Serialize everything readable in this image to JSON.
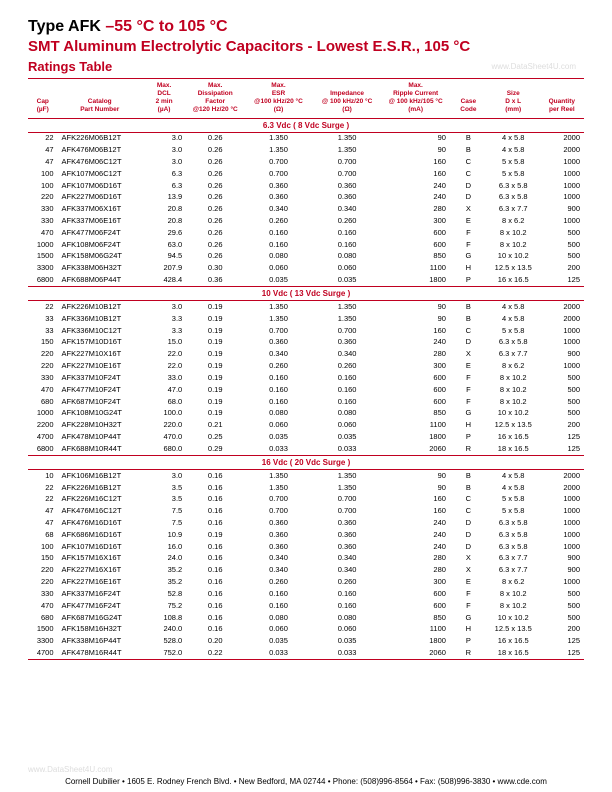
{
  "title": {
    "line1_afk": "Type AFK",
    "line1_temp": "  –55 °C to 105 °C",
    "line2": "SMT Aluminum Electrolytic Capacitors - Lowest E.S.R., 105 °C",
    "ratings": "Ratings Table",
    "watermark": "www.DataSheet4U.com"
  },
  "headers": {
    "cap": "Cap\n(µF)",
    "pn": "Catalog\nPart Number",
    "dcl": "Max.\nDCL\n2 min\n(µA)",
    "df": "Max.\nDissipation\nFactor\n@120 Hz/20 °C",
    "esr": "Max.\nESR\n@100 kHz/20 °C\n(Ω)",
    "imp": "Impedance\n@ 100 kHz/20 °C\n(Ω)",
    "rc": "Max.\nRipple Current\n@ 100 kHz/105 °C\n(mA)",
    "cc": "Case\nCode",
    "sz": "Size\nD x L\n(mm)",
    "qty": "Quantity\nper Reel"
  },
  "sections": [
    {
      "label": "6.3 Vdc ( 8 Vdc Surge )",
      "rows": [
        [
          "22",
          "AFK226M06B12T",
          "3.0",
          "0.26",
          "1.350",
          "1.350",
          "90",
          "B",
          "4 x 5.8",
          "2000"
        ],
        [
          "47",
          "AFK476M06B12T",
          "3.0",
          "0.26",
          "1.350",
          "1.350",
          "90",
          "B",
          "4 x 5.8",
          "2000"
        ],
        [
          "47",
          "AFK476M06C12T",
          "3.0",
          "0.26",
          "0.700",
          "0.700",
          "160",
          "C",
          "5 x 5.8",
          "1000"
        ],
        [
          "100",
          "AFK107M06C12T",
          "6.3",
          "0.26",
          "0.700",
          "0.700",
          "160",
          "C",
          "5 x 5.8",
          "1000"
        ],
        [
          "100",
          "AFK107M06D16T",
          "6.3",
          "0.26",
          "0.360",
          "0.360",
          "240",
          "D",
          "6.3 x 5.8",
          "1000"
        ],
        [
          "220",
          "AFK227M06D16T",
          "13.9",
          "0.26",
          "0.360",
          "0.360",
          "240",
          "D",
          "6.3 x 5.8",
          "1000"
        ],
        [
          "330",
          "AFK337M06X16T",
          "20.8",
          "0.26",
          "0.340",
          "0.340",
          "280",
          "X",
          "6.3 x 7.7",
          "900"
        ],
        [
          "330",
          "AFK337M06E16T",
          "20.8",
          "0.26",
          "0.260",
          "0.260",
          "300",
          "E",
          "8 x 6.2",
          "1000"
        ],
        [
          "470",
          "AFK477M06F24T",
          "29.6",
          "0.26",
          "0.160",
          "0.160",
          "600",
          "F",
          "8 x 10.2",
          "500"
        ],
        [
          "1000",
          "AFK108M06F24T",
          "63.0",
          "0.26",
          "0.160",
          "0.160",
          "600",
          "F",
          "8 x 10.2",
          "500"
        ],
        [
          "1500",
          "AFK158M06G24T",
          "94.5",
          "0.26",
          "0.080",
          "0.080",
          "850",
          "G",
          "10 x 10.2",
          "500"
        ],
        [
          "3300",
          "AFK338M06H32T",
          "207.9",
          "0.30",
          "0.060",
          "0.060",
          "1100",
          "H",
          "12.5 x 13.5",
          "200"
        ],
        [
          "6800",
          "AFK688M06P44T",
          "428.4",
          "0.36",
          "0.035",
          "0.035",
          "1800",
          "P",
          "16 x 16.5",
          "125"
        ]
      ]
    },
    {
      "label": "10 Vdc ( 13 Vdc Surge )",
      "rows": [
        [
          "22",
          "AFK226M10B12T",
          "3.0",
          "0.19",
          "1.350",
          "1.350",
          "90",
          "B",
          "4 x 5.8",
          "2000"
        ],
        [
          "33",
          "AFK336M10B12T",
          "3.3",
          "0.19",
          "1.350",
          "1.350",
          "90",
          "B",
          "4 x 5.8",
          "2000"
        ],
        [
          "33",
          "AFK336M10C12T",
          "3.3",
          "0.19",
          "0.700",
          "0.700",
          "160",
          "C",
          "5 x 5.8",
          "1000"
        ],
        [
          "150",
          "AFK157M10D16T",
          "15.0",
          "0.19",
          "0.360",
          "0.360",
          "240",
          "D",
          "6.3 x 5.8",
          "1000"
        ],
        [
          "220",
          "AFK227M10X16T",
          "22.0",
          "0.19",
          "0.340",
          "0.340",
          "280",
          "X",
          "6.3 x 7.7",
          "900"
        ],
        [
          "220",
          "AFK227M10E16T",
          "22.0",
          "0.19",
          "0.260",
          "0.260",
          "300",
          "E",
          "8 x 6.2",
          "1000"
        ],
        [
          "330",
          "AFK337M10F24T",
          "33.0",
          "0.19",
          "0.160",
          "0.160",
          "600",
          "F",
          "8 x 10.2",
          "500"
        ],
        [
          "470",
          "AFK477M10F24T",
          "47.0",
          "0.19",
          "0.160",
          "0.160",
          "600",
          "F",
          "8 x 10.2",
          "500"
        ],
        [
          "680",
          "AFK687M10F24T",
          "68.0",
          "0.19",
          "0.160",
          "0.160",
          "600",
          "F",
          "8 x 10.2",
          "500"
        ],
        [
          "1000",
          "AFK108M10G24T",
          "100.0",
          "0.19",
          "0.080",
          "0.080",
          "850",
          "G",
          "10 x 10.2",
          "500"
        ],
        [
          "2200",
          "AFK228M10H32T",
          "220.0",
          "0.21",
          "0.060",
          "0.060",
          "1100",
          "H",
          "12.5 x 13.5",
          "200"
        ],
        [
          "4700",
          "AFK478M10P44T",
          "470.0",
          "0.25",
          "0.035",
          "0.035",
          "1800",
          "P",
          "16 x 16.5",
          "125"
        ],
        [
          "6800",
          "AFK688M10R44T",
          "680.0",
          "0.29",
          "0.033",
          "0.033",
          "2060",
          "R",
          "18 x 16.5",
          "125"
        ]
      ]
    },
    {
      "label": "16 Vdc ( 20 Vdc Surge )",
      "rows": [
        [
          "10",
          "AFK106M16B12T",
          "3.0",
          "0.16",
          "1.350",
          "1.350",
          "90",
          "B",
          "4 x 5.8",
          "2000"
        ],
        [
          "22",
          "AFK226M16B12T",
          "3.5",
          "0.16",
          "1.350",
          "1.350",
          "90",
          "B",
          "4 x 5.8",
          "2000"
        ],
        [
          "22",
          "AFK226M16C12T",
          "3.5",
          "0.16",
          "0.700",
          "0.700",
          "160",
          "C",
          "5 x 5.8",
          "1000"
        ],
        [
          "47",
          "AFK476M16C12T",
          "7.5",
          "0.16",
          "0.700",
          "0.700",
          "160",
          "C",
          "5 x 5.8",
          "1000"
        ],
        [
          "47",
          "AFK476M16D16T",
          "7.5",
          "0.16",
          "0.360",
          "0.360",
          "240",
          "D",
          "6.3 x 5.8",
          "1000"
        ],
        [
          "68",
          "AFK686M16D16T",
          "10.9",
          "0.19",
          "0.360",
          "0.360",
          "240",
          "D",
          "6.3 x 5.8",
          "1000"
        ],
        [
          "100",
          "AFK107M16D16T",
          "16.0",
          "0.16",
          "0.360",
          "0.360",
          "240",
          "D",
          "6.3 x 5.8",
          "1000"
        ],
        [
          "150",
          "AFK157M16X16T",
          "24.0",
          "0.16",
          "0.340",
          "0.340",
          "280",
          "X",
          "6.3 x 7.7",
          "900"
        ],
        [
          "220",
          "AFK227M16X16T",
          "35.2",
          "0.16",
          "0.340",
          "0.340",
          "280",
          "X",
          "6.3 x 7.7",
          "900"
        ],
        [
          "220",
          "AFK227M16E16T",
          "35.2",
          "0.16",
          "0.260",
          "0.260",
          "300",
          "E",
          "8 x 6.2",
          "1000"
        ],
        [
          "330",
          "AFK337M16F24T",
          "52.8",
          "0.16",
          "0.160",
          "0.160",
          "600",
          "F",
          "8 x 10.2",
          "500"
        ],
        [
          "470",
          "AFK477M16F24T",
          "75.2",
          "0.16",
          "0.160",
          "0.160",
          "600",
          "F",
          "8 x 10.2",
          "500"
        ],
        [
          "680",
          "AFK687M16G24T",
          "108.8",
          "0.16",
          "0.080",
          "0.080",
          "850",
          "G",
          "10 x 10.2",
          "500"
        ],
        [
          "1500",
          "AFK158M16H32T",
          "240.0",
          "0.16",
          "0.060",
          "0.060",
          "1100",
          "H",
          "12.5 x 13.5",
          "200"
        ],
        [
          "3300",
          "AFK338M16P44T",
          "528.0",
          "0.20",
          "0.035",
          "0.035",
          "1800",
          "P",
          "16 x 16.5",
          "125"
        ],
        [
          "4700",
          "AFK478M16R44T",
          "752.0",
          "0.22",
          "0.033",
          "0.033",
          "2060",
          "R",
          "18 x 16.5",
          "125"
        ]
      ]
    }
  ],
  "footer": "Cornell Dubilier • 1605 E. Rodney French Blvd. • New Bedford, MA 02744 • Phone: (508)996-8564 • Fax: (508)996-3830 • www.cde.com",
  "footer_wm": "www.DataSheet4U.com"
}
